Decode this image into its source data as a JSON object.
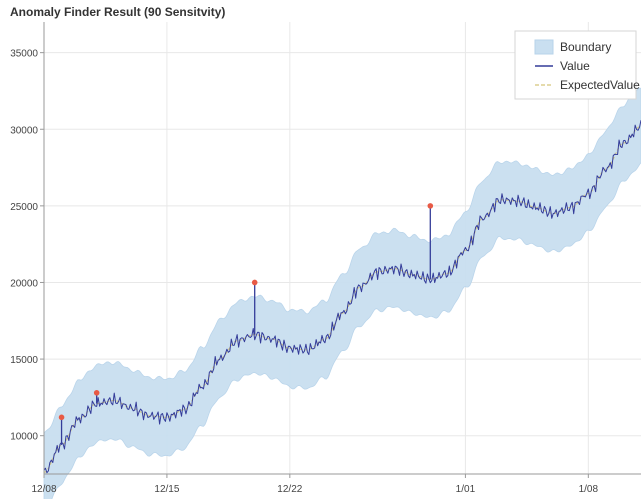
{
  "chart_data": {
    "type": "line",
    "title": "Anomaly Finder Result (90 Sensitvity)",
    "xlabel": "",
    "ylabel": "",
    "grid": true,
    "legend_position": "top-right",
    "xlim": [
      "2019-12-08",
      "2020-01-11"
    ],
    "ylim": [
      7500,
      37000
    ],
    "x_tick_labels": [
      "12/08",
      "12/15",
      "12/22",
      "1/01",
      "1/08"
    ],
    "y_tick_labels": [
      "10000",
      "15000",
      "20000",
      "25000",
      "30000",
      "35000"
    ],
    "legend": [
      "Boundary",
      "Value",
      "ExpectedValue"
    ],
    "colors": {
      "boundary_fill": "#c9dff0",
      "boundary_edge": "#b7d3ea",
      "value_line": "#343c99",
      "expected_line": "#d5c57a",
      "anomaly_point": "#e85a45",
      "grid": "#e8e8e8",
      "axis": "#999999"
    },
    "series": [
      {
        "name": "ExpectedValue",
        "points": [
          [
            "2019-12-08",
            7600
          ],
          [
            "2019-12-09",
            9400
          ],
          [
            "2019-12-10",
            11100
          ],
          [
            "2019-12-11",
            12100
          ],
          [
            "2019-12-12",
            12300
          ],
          [
            "2019-12-13",
            11800
          ],
          [
            "2019-12-14",
            11300
          ],
          [
            "2019-12-15",
            11200
          ],
          [
            "2019-12-16",
            11700
          ],
          [
            "2019-12-17",
            13200
          ],
          [
            "2019-12-18",
            15000
          ],
          [
            "2019-12-19",
            16200
          ],
          [
            "2019-12-20",
            16600
          ],
          [
            "2019-12-21",
            16300
          ],
          [
            "2019-12-22",
            15700
          ],
          [
            "2019-12-23",
            15600
          ],
          [
            "2019-12-24",
            16300
          ],
          [
            "2019-12-25",
            18000
          ],
          [
            "2019-12-26",
            19700
          ],
          [
            "2019-12-27",
            20700
          ],
          [
            "2019-12-28",
            20900
          ],
          [
            "2019-12-29",
            20500
          ],
          [
            "2019-12-30",
            20200
          ],
          [
            "2019-12-31",
            20600
          ],
          [
            "2020-01-01",
            22100
          ],
          [
            "2020-01-02",
            24200
          ],
          [
            "2020-01-03",
            25400
          ],
          [
            "2020-01-04",
            25300
          ],
          [
            "2020-01-05",
            24900
          ],
          [
            "2020-01-06",
            24500
          ],
          [
            "2020-01-07",
            24900
          ],
          [
            "2020-01-08",
            25800
          ],
          [
            "2020-01-09",
            27400
          ],
          [
            "2020-01-10",
            29100
          ],
          [
            "2020-01-11",
            30200
          ]
        ]
      },
      {
        "name": "Boundary",
        "band_half_width": 2500
      },
      {
        "name": "Value",
        "noise_amplitude": 450,
        "points_per_day": 12
      }
    ],
    "anomalies": [
      [
        "2019-12-09",
        11200
      ],
      [
        "2019-12-11",
        12800
      ],
      [
        "2019-12-20",
        20000
      ],
      [
        "2019-12-30",
        25000
      ]
    ]
  }
}
